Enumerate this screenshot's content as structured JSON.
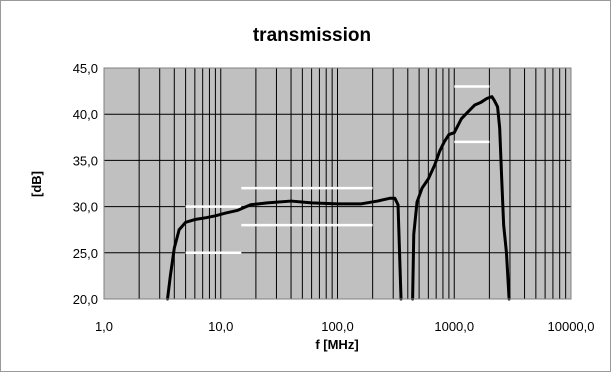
{
  "chart_data": {
    "type": "line",
    "title": "transmission",
    "xlabel": "f [MHz]",
    "ylabel": "[dB]",
    "xscale": "log",
    "xlim": [
      1,
      10000
    ],
    "ylim": [
      20,
      45
    ],
    "grid": true,
    "legend": "none",
    "colors": {
      "plot_bg": "#c0c0c0",
      "grid": "#000000",
      "line": "#000000",
      "limit": "#ffffff"
    },
    "x_ticks": [
      {
        "value": 1,
        "label": "1,0"
      },
      {
        "value": 10,
        "label": "10,0"
      },
      {
        "value": 100,
        "label": "100,0"
      },
      {
        "value": 1000,
        "label": "1000,0"
      },
      {
        "value": 10000,
        "label": "10000,0"
      }
    ],
    "y_ticks": [
      {
        "value": 20,
        "label": "20,0"
      },
      {
        "value": 25,
        "label": "25,0"
      },
      {
        "value": 30,
        "label": "30,0"
      },
      {
        "value": 35,
        "label": "35,0"
      },
      {
        "value": 40,
        "label": "40,0"
      },
      {
        "value": 45,
        "label": "45,0"
      }
    ],
    "series": [
      {
        "segments": [
          [
            [
              3.5,
              20
            ],
            [
              3.7,
              22.5
            ],
            [
              4.0,
              25.5
            ],
            [
              4.4,
              27.5
            ],
            [
              5.0,
              28.3
            ],
            [
              6.0,
              28.6
            ],
            [
              7.5,
              28.8
            ],
            [
              9.0,
              29.0
            ],
            [
              11.0,
              29.3
            ],
            [
              14.0,
              29.6
            ],
            [
              18.0,
              30.2
            ],
            [
              25.0,
              30.4
            ],
            [
              40.0,
              30.6
            ],
            [
              60.0,
              30.4
            ],
            [
              100.0,
              30.3
            ],
            [
              160.0,
              30.3
            ],
            [
              220.0,
              30.6
            ],
            [
              280.0,
              30.9
            ],
            [
              310.0,
              30.9
            ],
            [
              330.0,
              30.2
            ],
            [
              340.0,
              25
            ],
            [
              350.0,
              20
            ]
          ],
          [
            [
              440.0,
              20
            ],
            [
              450.0,
              27
            ],
            [
              480.0,
              30.5
            ],
            [
              530.0,
              32.0
            ],
            [
              600.0,
              33.0
            ],
            [
              680.0,
              34.5
            ],
            [
              750.0,
              36.0
            ],
            [
              820.0,
              37.0
            ],
            [
              900.0,
              37.8
            ],
            [
              1000.0,
              38.0
            ],
            [
              1150.0,
              39.5
            ],
            [
              1300.0,
              40.2
            ],
            [
              1500.0,
              41.0
            ],
            [
              1700.0,
              41.3
            ],
            [
              1900.0,
              41.7
            ],
            [
              2100.0,
              41.9
            ],
            [
              2200.0,
              41.5
            ],
            [
              2350.0,
              40.8
            ],
            [
              2450.0,
              38.5
            ],
            [
              2550.0,
              33
            ],
            [
              2650.0,
              28
            ],
            [
              2800.0,
              25
            ],
            [
              2950.0,
              20
            ]
          ]
        ]
      }
    ],
    "limit_lines": [
      {
        "x": [
          5,
          15
        ],
        "y": 30
      },
      {
        "x": [
          5,
          15
        ],
        "y": 25
      },
      {
        "x": [
          15,
          200
        ],
        "y": 32
      },
      {
        "x": [
          15,
          200
        ],
        "y": 28
      },
      {
        "x": [
          1000,
          2000
        ],
        "y": 43
      },
      {
        "x": [
          1000,
          2000
        ],
        "y": 37
      }
    ]
  }
}
